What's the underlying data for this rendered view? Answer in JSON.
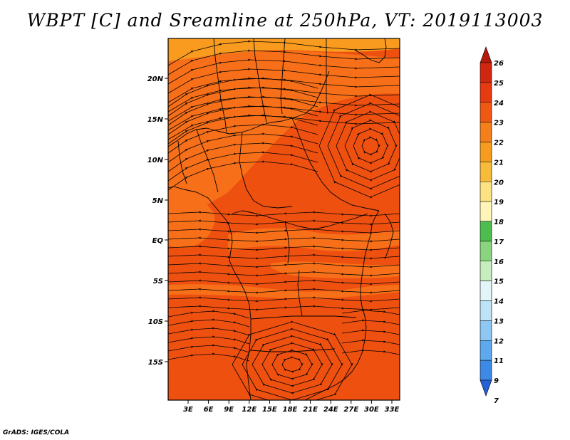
{
  "title": "WBPT [C] and Sreamline at 250hPa, VT: 2019113003",
  "credit": "GrADS: IGES/COLA",
  "map": {
    "lat_ticks": [
      "20N",
      "15N",
      "10N",
      "5N",
      "EQ",
      "5S",
      "10S",
      "15S"
    ],
    "lon_ticks": [
      "3E",
      "6E",
      "9E",
      "12E",
      "15E",
      "18E",
      "21E",
      "24E",
      "27E",
      "30E",
      "33E"
    ],
    "fill_colors": {
      "dominant": "#ee5010",
      "warm_band": "#f77019",
      "north_band": "#f99b1f"
    }
  },
  "colorbar": {
    "levels": [
      "26",
      "25",
      "24",
      "23",
      "22",
      "21",
      "20",
      "19",
      "18",
      "17",
      "16",
      "15",
      "14",
      "13",
      "12",
      "11",
      "9",
      "7"
    ],
    "colors": [
      "#b5190d",
      "#d02810",
      "#e63a12",
      "#f05914",
      "#f57f1a",
      "#f59c1e",
      "#f7bb3a",
      "#fde282",
      "#fff5b9",
      "#4dbd4e",
      "#8bd47f",
      "#c7ecbd",
      "#e2f6f8",
      "#bde3f5",
      "#8ec7f3",
      "#5ea9ee",
      "#3c8ae6",
      "#2460d6"
    ]
  }
}
